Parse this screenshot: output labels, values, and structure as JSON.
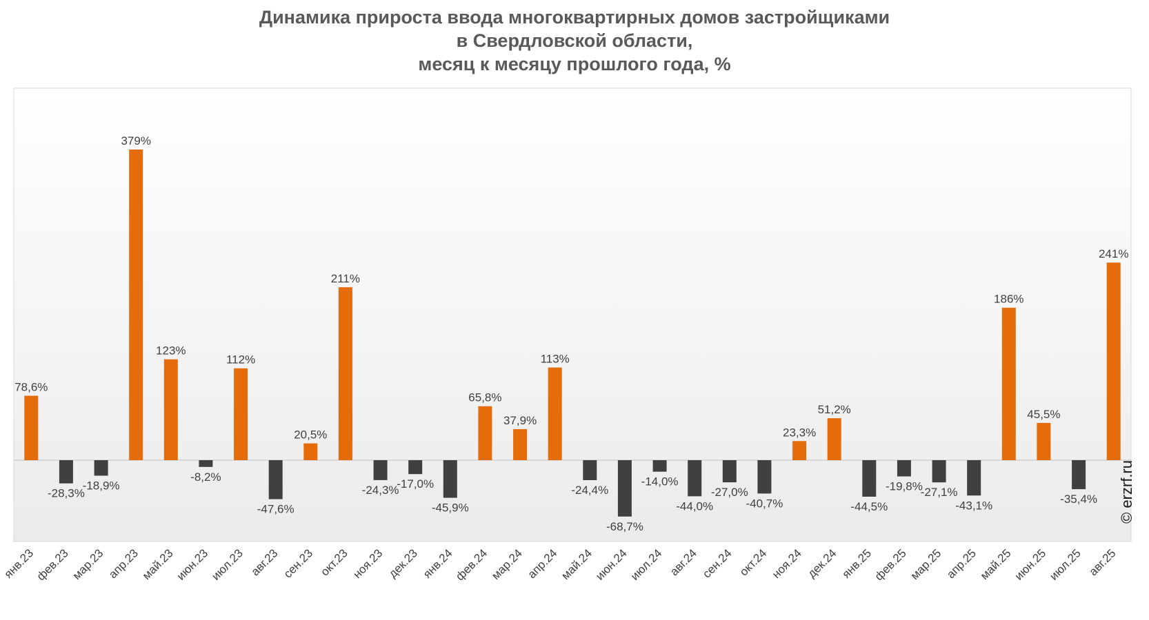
{
  "title_lines": [
    "Динамика прироста ввода многоквартирных домов застройщиками",
    "в Свердловской области,",
    "месяц к месяцу прошлого года, %"
  ],
  "credit": "© erzrf.ru",
  "colors": {
    "positive": "#e46c0a",
    "negative": "#404040"
  },
  "chart_data": {
    "type": "bar",
    "title": "Динамика прироста ввода многоквартирных домов застройщиками в Свердловской области, месяц к месяцу прошлого года, %",
    "xlabel": "",
    "ylabel": "",
    "grid": false,
    "categories": [
      "янв.23",
      "фев.23",
      "мар.23",
      "апр.23",
      "май.23",
      "июн.23",
      "июл.23",
      "авг.23",
      "сен.23",
      "окт.23",
      "ноя.23",
      "дек.23",
      "янв.24",
      "фев.24",
      "мар.24",
      "апр.24",
      "май.24",
      "июн.24",
      "июл.24",
      "авг.24",
      "сен.24",
      "окт.24",
      "ноя.24",
      "дек.24",
      "янв.25",
      "фев.25",
      "мар.25",
      "апр.25",
      "май.25",
      "июн.25",
      "июл.25",
      "авг.25"
    ],
    "values": [
      78.6,
      -28.3,
      -18.9,
      379,
      123,
      -8.2,
      112,
      -47.6,
      20.5,
      211,
      -24.3,
      -17.0,
      -45.9,
      65.8,
      37.9,
      113,
      -24.4,
      -68.7,
      -14.0,
      -44.0,
      -27.0,
      -40.7,
      23.3,
      51.2,
      -44.5,
      -19.8,
      -27.1,
      -43.1,
      186,
      45.5,
      -35.4,
      241
    ],
    "labels": [
      "78,6%",
      "-28,3%",
      "-18,9%",
      "379%",
      "123%",
      "-8,2%",
      "112%",
      "-47,6%",
      "20,5%",
      "211%",
      "-24,3%",
      "-17,0%",
      "-45,9%",
      "65,8%",
      "37,9%",
      "113%",
      "-24,4%",
      "-68,7%",
      "-14,0%",
      "-44,0%",
      "-27,0%",
      "-40,7%",
      "23,3%",
      "51,2%",
      "-44,5%",
      "-19,8%",
      "-27,1%",
      "-43,1%",
      "186%",
      "45,5%",
      "-35,4%",
      "241%"
    ],
    "ylim": [
      -100,
      450
    ]
  }
}
